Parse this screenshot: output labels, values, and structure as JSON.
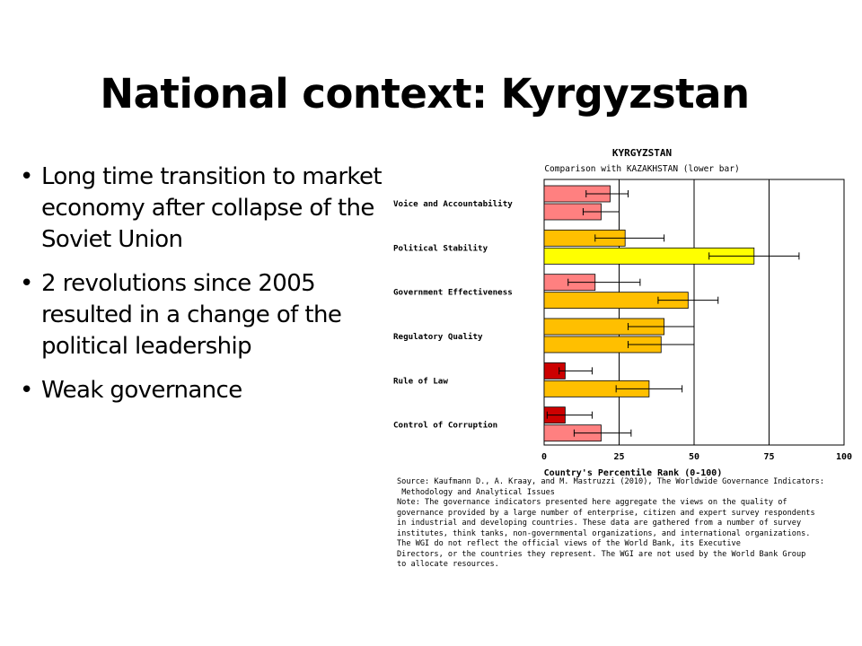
{
  "slide": {
    "title": "National context: Kyrgyzstan",
    "bullets": [
      "Long time transition to market economy after collapse of the Soviet Union",
      "2 revolutions since 2005 resulted in a change of the political leadership",
      "Weak governance"
    ]
  },
  "chart_data": {
    "type": "bar",
    "orientation": "horizontal",
    "title": "KYRGYZSTAN",
    "subtitle": "Comparison with KAZAKHSTAN (lower bar)",
    "xlabel": "Country's Percentile Rank (0-100)",
    "xlim": [
      0,
      100
    ],
    "xticks": [
      0,
      25,
      50,
      75,
      100
    ],
    "grid": true,
    "categories": [
      "Voice and Accountability",
      "Political Stability",
      "Government Effectiveness",
      "Regulatory Quality",
      "Rule of Law",
      "Control of Corruption"
    ],
    "series": [
      {
        "values": [
          22,
          27,
          17,
          40,
          7,
          7
        ],
        "error_low": [
          14,
          17,
          8,
          28,
          5,
          1
        ],
        "error_high": [
          28,
          40,
          32,
          50,
          16,
          16
        ],
        "colors": [
          "#ff8080",
          "#ffbf00",
          "#ff8080",
          "#ffbf00",
          "#cc0000",
          "#cc0000"
        ]
      },
      {
        "values": [
          19,
          70,
          48,
          39,
          35,
          19
        ],
        "error_low": [
          13,
          55,
          38,
          28,
          24,
          10
        ],
        "error_high": [
          25,
          85,
          58,
          50,
          46,
          29
        ],
        "colors": [
          "#ff8080",
          "#ffff00",
          "#ffbf00",
          "#ffbf00",
          "#ffbf00",
          "#ff8080"
        ]
      }
    ],
    "source": "Source: Kaufmann D., A. Kraay, and M. Mastruzzi (2010), The Worldwide Governance Indicators:\n Methodology and Analytical Issues",
    "note": "Note: The governance indicators presented here aggregate the views on the quality of\ngovernance provided by a large number of enterprise, citizen and expert survey respondents\nin industrial and developing countries. These data are gathered from a number of survey\ninstitutes, think tanks, non-governmental organizations, and international organizations.\nThe WGI do not reflect the official views of the World Bank, its Executive\nDirectors, or the countries they represent. The WGI are not used by the World Bank Group\nto allocate resources."
  }
}
